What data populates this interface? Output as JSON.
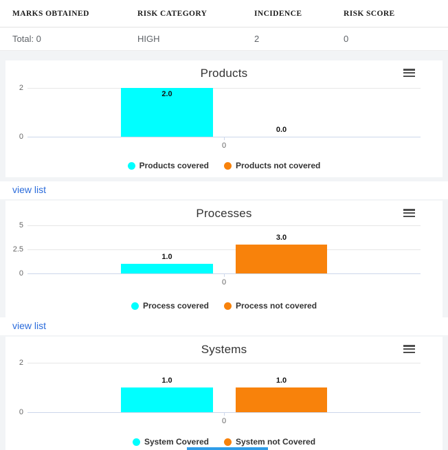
{
  "summary_table": {
    "columns": [
      "MARKS OBTAINED",
      "RISK CATEGORY",
      "INCIDENCE",
      "RISK SCORE"
    ],
    "row": {
      "marks_obtained": "Total: 0",
      "risk_category": "HIGH",
      "incidence": "2",
      "risk_score": "0"
    }
  },
  "links": {
    "view_list": "view list"
  },
  "colors": {
    "covered": "#00FFFF",
    "not_covered": "#F8820B",
    "link_blue": "#2A6BDB"
  },
  "icons": {
    "chart_menu": "hamburger-menu-icon"
  },
  "chart_data": [
    {
      "type": "bar",
      "title": "Products",
      "categories": [
        "0"
      ],
      "series": [
        {
          "name": "Products covered",
          "color": "#00FFFF",
          "values": [
            2.0
          ]
        },
        {
          "name": "Products not covered",
          "color": "#F8820B",
          "values": [
            0.0
          ]
        }
      ],
      "xlabel": "",
      "ylabel": "",
      "ylim": [
        0,
        2
      ],
      "yticks": [
        0,
        2
      ],
      "grid": true,
      "legend_position": "bottom-center",
      "data_labels": [
        "2.0",
        "0.0"
      ]
    },
    {
      "type": "bar",
      "title": "Processes",
      "categories": [
        "0"
      ],
      "series": [
        {
          "name": "Process covered",
          "color": "#00FFFF",
          "values": [
            1.0
          ]
        },
        {
          "name": "Process not covered",
          "color": "#F8820B",
          "values": [
            3.0
          ]
        }
      ],
      "xlabel": "",
      "ylabel": "",
      "ylim": [
        0,
        5
      ],
      "yticks": [
        0,
        2.5,
        5
      ],
      "grid": true,
      "legend_position": "bottom-center",
      "data_labels": [
        "1.0",
        "3.0"
      ]
    },
    {
      "type": "bar",
      "title": "Systems",
      "categories": [
        "0"
      ],
      "series": [
        {
          "name": "System Covered",
          "color": "#00FFFF",
          "values": [
            1.0
          ]
        },
        {
          "name": "System not Covered",
          "color": "#F8820B",
          "values": [
            1.0
          ]
        }
      ],
      "xlabel": "",
      "ylabel": "",
      "ylim": [
        0,
        2
      ],
      "yticks": [
        0,
        2
      ],
      "grid": true,
      "legend_position": "bottom-center",
      "data_labels": [
        "1.0",
        "1.0"
      ]
    }
  ]
}
